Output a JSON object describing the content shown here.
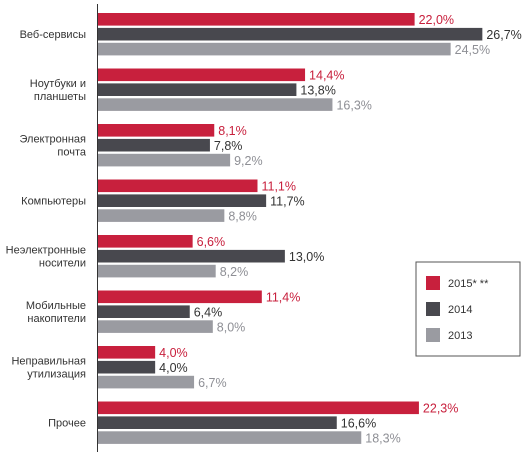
{
  "chart_data": {
    "type": "bar",
    "orientation": "horizontal",
    "categories": [
      [
        "Веб-сервисы"
      ],
      [
        "Ноутбуки и",
        "планшеты"
      ],
      [
        "Электронная",
        "почта"
      ],
      [
        "Компьютеры"
      ],
      [
        "Неэлектронные",
        "носители"
      ],
      [
        "Мобильные",
        "накопители"
      ],
      [
        "Неправильная",
        "утилизация"
      ],
      [
        "Прочее"
      ]
    ],
    "series": [
      {
        "name": "2015* **",
        "color": "#c8203d",
        "label_color": "#c8203d",
        "values": [
          22.0,
          14.4,
          8.1,
          11.1,
          6.6,
          11.4,
          4.0,
          22.3
        ],
        "labels": [
          "22,0%",
          "14,4%",
          "8,1%",
          "11,1%",
          "6,6%",
          "11,4%",
          "4,0%",
          "22,3%"
        ]
      },
      {
        "name": "2014",
        "color": "#48484e",
        "label_color": "#333333",
        "values": [
          26.7,
          13.8,
          7.8,
          11.7,
          13.0,
          6.4,
          4.0,
          16.6
        ],
        "labels": [
          "26,7%",
          "13,8%",
          "7,8%",
          "11,7%",
          "13,0%",
          "6,4%",
          "4,0%",
          "16,6%"
        ]
      },
      {
        "name": "2013",
        "color": "#9a9ba1",
        "label_color": "#8e8f95",
        "values": [
          24.5,
          16.3,
          9.2,
          8.8,
          8.2,
          8.0,
          6.7,
          18.3
        ],
        "labels": [
          "24,5%",
          "16,3%",
          "9,2%",
          "8,8%",
          "8,2%",
          "8,0%",
          "6,7%",
          "18,3%"
        ]
      }
    ],
    "xlim": [
      0,
      29
    ],
    "grid": false,
    "legend_position": "right-middle"
  }
}
